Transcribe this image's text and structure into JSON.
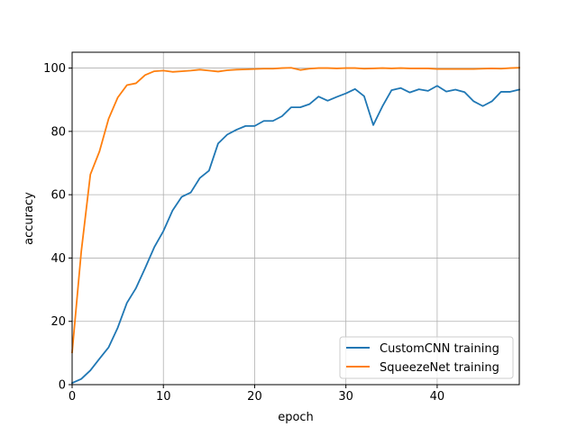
{
  "chart_data": {
    "type": "line",
    "title": "",
    "xlabel": "epoch",
    "ylabel": "accuracy",
    "xlim": [
      0,
      49
    ],
    "ylim": [
      0,
      105
    ],
    "xticks": [
      0,
      10,
      20,
      30,
      40
    ],
    "yticks": [
      0,
      20,
      40,
      60,
      80,
      100
    ],
    "grid": true,
    "legend_position": "lower-right",
    "x": [
      0,
      1,
      2,
      3,
      4,
      5,
      6,
      7,
      8,
      9,
      10,
      11,
      12,
      13,
      14,
      15,
      16,
      17,
      18,
      19,
      20,
      21,
      22,
      23,
      24,
      25,
      26,
      27,
      28,
      29,
      30,
      31,
      32,
      33,
      34,
      35,
      36,
      37,
      38,
      39,
      40,
      41,
      42,
      43,
      44,
      45,
      46,
      47,
      48,
      49
    ],
    "series": [
      {
        "name": "CustomCNN training",
        "color": "#1f77b4",
        "values": [
          0.5,
          1.8,
          4.5,
          8.2,
          11.8,
          18.0,
          25.8,
          30.5,
          36.8,
          43.4,
          48.5,
          55.0,
          59.3,
          60.7,
          65.3,
          67.6,
          76.2,
          79.0,
          80.5,
          81.7,
          81.7,
          83.3,
          83.3,
          84.8,
          87.6,
          87.6,
          88.6,
          91.0,
          89.7,
          90.9,
          92.0,
          93.4,
          91.1,
          82.0,
          87.9,
          93.0,
          93.7,
          92.3,
          93.3,
          92.8,
          94.4,
          92.6,
          93.2,
          92.4,
          89.5,
          88.0,
          89.5,
          92.5,
          92.5,
          93.2
        ]
      },
      {
        "name": "SqueezeNet training",
        "color": "#ff7f0e",
        "values": [
          10.2,
          42.0,
          66.4,
          73.7,
          84.0,
          90.7,
          94.6,
          95.2,
          97.8,
          99.0,
          99.2,
          98.8,
          99.0,
          99.2,
          99.5,
          99.2,
          98.9,
          99.3,
          99.5,
          99.6,
          99.7,
          99.8,
          99.8,
          100.0,
          100.1,
          99.4,
          99.8,
          100.0,
          100.0,
          99.9,
          100.0,
          100.0,
          99.8,
          99.9,
          100.0,
          99.9,
          100.0,
          99.9,
          99.9,
          99.9,
          99.7,
          99.7,
          99.7,
          99.7,
          99.7,
          99.8,
          99.9,
          99.8,
          100.0,
          100.1
        ]
      }
    ]
  }
}
